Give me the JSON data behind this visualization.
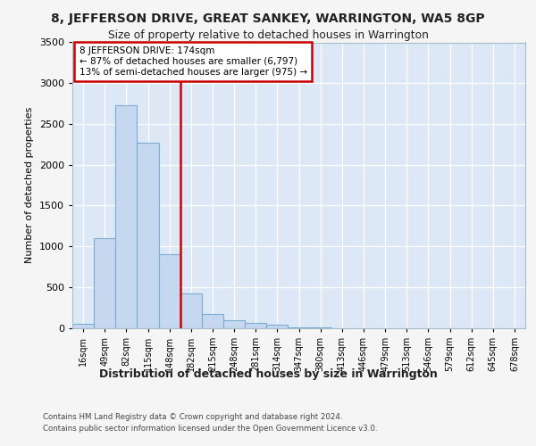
{
  "title": "8, JEFFERSON DRIVE, GREAT SANKEY, WARRINGTON, WA5 8GP",
  "subtitle": "Size of property relative to detached houses in Warrington",
  "xlabel": "Distribution of detached houses by size in Warrington",
  "ylabel": "Number of detached properties",
  "categories": [
    "16sqm",
    "49sqm",
    "82sqm",
    "115sqm",
    "148sqm",
    "182sqm",
    "215sqm",
    "248sqm",
    "281sqm",
    "314sqm",
    "347sqm",
    "380sqm",
    "413sqm",
    "446sqm",
    "479sqm",
    "513sqm",
    "546sqm",
    "579sqm",
    "612sqm",
    "645sqm",
    "678sqm"
  ],
  "bar_heights": [
    50,
    1100,
    2730,
    2270,
    900,
    420,
    170,
    95,
    55,
    40,
    10,
    5,
    0,
    0,
    0,
    0,
    0,
    0,
    0,
    0,
    0
  ],
  "bar_color": "#c5d8ef",
  "bar_edge_color": "#7aadd4",
  "vline_color": "#cc0000",
  "ann_line1": "8 JEFFERSON DRIVE: 174sqm",
  "ann_line2": "← 87% of detached houses are smaller (6,797)",
  "ann_line3": "13% of semi-detached houses are larger (975) →",
  "ann_box_facecolor": "#ffffff",
  "ann_box_edgecolor": "#cc0000",
  "fig_bg_color": "#f5f5f5",
  "plot_bg_color": "#dce8f5",
  "footer_line1": "Contains HM Land Registry data © Crown copyright and database right 2024.",
  "footer_line2": "Contains public sector information licensed under the Open Government Licence v3.0.",
  "ylim": [
    0,
    3500
  ],
  "yticks": [
    0,
    500,
    1000,
    1500,
    2000,
    2500,
    3000,
    3500
  ],
  "vline_bar_idx": 5
}
